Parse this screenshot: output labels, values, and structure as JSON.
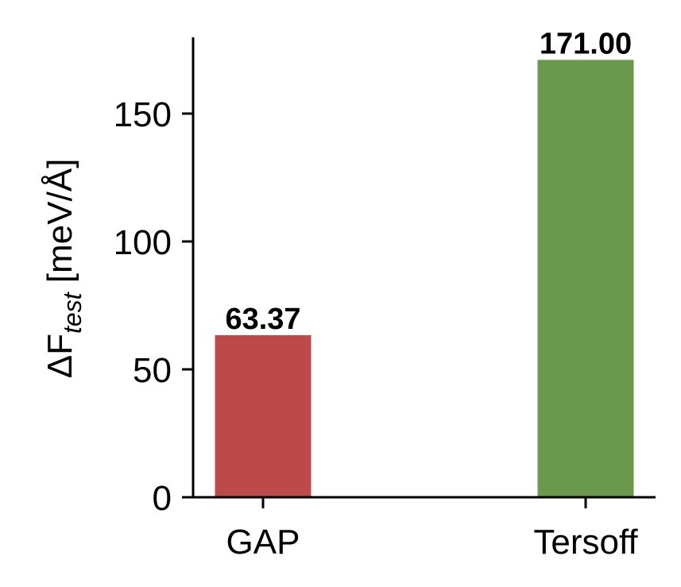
{
  "chart_data": {
    "type": "bar",
    "title": "",
    "xlabel": "",
    "ylabel": "ΔF_test [meV/Å]",
    "ylabel_parts": {
      "main": "ΔF",
      "subscript": "test",
      "unit": " [meV/Å]"
    },
    "categories": [
      "GAP",
      "Tersoff"
    ],
    "values": [
      63.37,
      171.0
    ],
    "value_labels": [
      "63.37",
      "171.00"
    ],
    "colors": [
      "#bd4a4b",
      "#6a984c"
    ],
    "ylim": [
      0,
      180
    ],
    "yticks": [
      0,
      50,
      100,
      150
    ],
    "ytick_labels": [
      "0",
      "50",
      "100",
      "150"
    ],
    "grid": false,
    "legend": null
  }
}
